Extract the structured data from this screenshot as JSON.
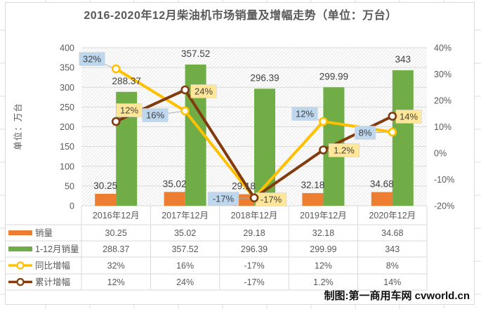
{
  "title": "2016-2020年12月柴油机市场销量及增幅走势（单位：万台）",
  "credit": "制图:第一商用车网 cvworld.cn",
  "colors": {
    "monthly_bar": "#ED7D31",
    "cumulative_bar": "#70AD47",
    "yoy_line": "#FFC000",
    "cumulative_line": "#823B0D",
    "yoy_label_bg": "#BDD7EE",
    "cumulative_label_bg": "#FFE699",
    "grid": "#D9D9D9",
    "axis_text": "#595959",
    "label_text": "#404040"
  },
  "chart_data": {
    "type": "bar",
    "subtype": "bar-line-combo",
    "categories": [
      "2016年12月",
      "2017年12月",
      "2018年12月",
      "2019年12月",
      "2020年12月"
    ],
    "bar_series": [
      {
        "name": "销量",
        "axis": "left",
        "values": [
          30.25,
          35.02,
          29.18,
          32.18,
          34.68
        ],
        "labels": [
          "30.25",
          "35.02",
          "29.18",
          "32.18",
          "34.68"
        ]
      },
      {
        "name": "1-12月销量",
        "axis": "left",
        "values": [
          288.37,
          357.52,
          296.39,
          299.99,
          343
        ],
        "labels": [
          "288.37",
          "357.52",
          "296.39",
          "299.99",
          "343"
        ]
      }
    ],
    "line_series": [
      {
        "name": "同比增幅",
        "axis": "right",
        "values": [
          32,
          16,
          -17,
          12,
          8
        ],
        "labels": [
          "32%",
          "16%",
          "-17%",
          "12%",
          "8%"
        ]
      },
      {
        "name": "累计增幅",
        "axis": "right",
        "values": [
          12,
          24,
          -17,
          1.2,
          14
        ],
        "labels": [
          "12%",
          "24%",
          "-17%",
          "1.2%",
          "14%"
        ]
      }
    ],
    "left_axis": {
      "title": "单位：万台",
      "min": 0,
      "max": 400,
      "step": 50,
      "ticks": [
        "400",
        "350",
        "300",
        "250",
        "200",
        "150",
        "100",
        "50",
        "0"
      ]
    },
    "right_axis": {
      "min": -20,
      "max": 40,
      "step": 10,
      "ticks": [
        "40%",
        "30%",
        "20%",
        "10%",
        "0%",
        "-10%",
        "-20%"
      ]
    },
    "grid": true,
    "legend_position": "table-left"
  },
  "table": {
    "header": [
      "2016年12月",
      "2017年12月",
      "2018年12月",
      "2019年12月",
      "2020年12月"
    ],
    "rows": [
      {
        "legend": "销量",
        "swatch": "bar",
        "cells": [
          "30.25",
          "35.02",
          "29.18",
          "32.18",
          "34.68"
        ]
      },
      {
        "legend": "1-12月销量",
        "swatch": "bar",
        "cells": [
          "288.37",
          "357.52",
          "296.39",
          "299.99",
          "343"
        ]
      },
      {
        "legend": "同比增幅",
        "swatch": "line",
        "cells": [
          "32%",
          "16%",
          "-17%",
          "12%",
          "8%"
        ]
      },
      {
        "legend": "累计增幅",
        "swatch": "line",
        "cells": [
          "12%",
          "24%",
          "-17%",
          "1.2%",
          "14%"
        ]
      }
    ]
  }
}
